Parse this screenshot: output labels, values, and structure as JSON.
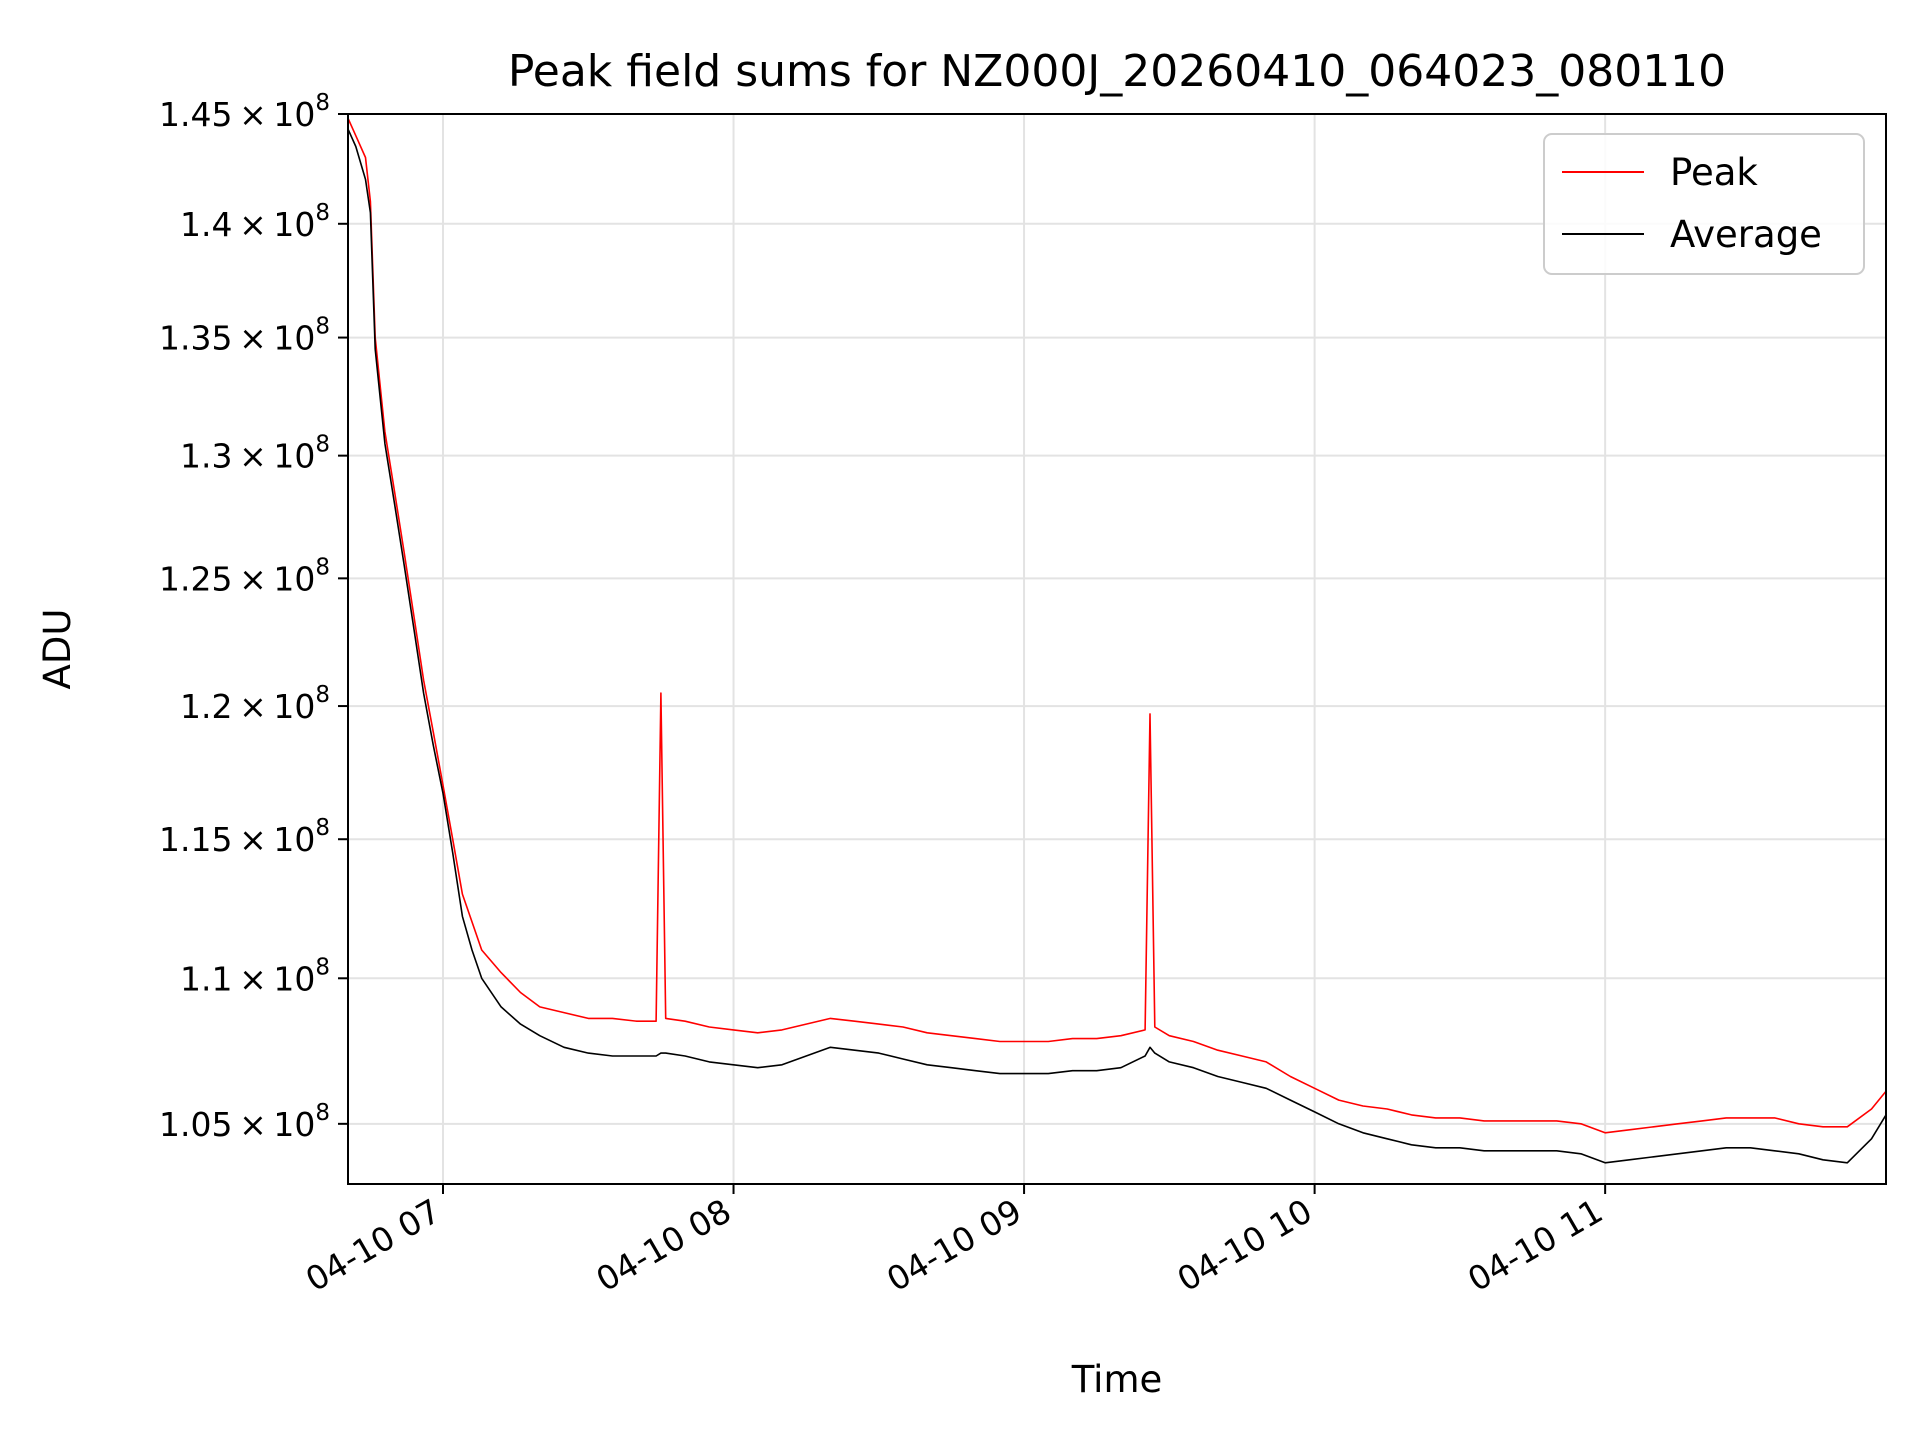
{
  "chart_data": {
    "type": "line",
    "title": "Peak field sums for NZ000J_20260410_064023_080110",
    "xlabel": "Time",
    "ylabel": "ADU",
    "scale": {
      "y": "log"
    },
    "xlim": [
      "2026-04-10 06:40:23",
      "2026-04-10 11:58:00"
    ],
    "ylim": [
      103000000,
      145000000
    ],
    "grid": true,
    "legend_position": "top-right",
    "x_ticks": [
      {
        "value": "2026-04-10 07:00",
        "label": "04-10 07"
      },
      {
        "value": "2026-04-10 08:00",
        "label": "04-10 08"
      },
      {
        "value": "2026-04-10 09:00",
        "label": "04-10 09"
      },
      {
        "value": "2026-04-10 10:00",
        "label": "04-10 10"
      },
      {
        "value": "2026-04-10 11:00",
        "label": "04-10 11"
      }
    ],
    "y_ticks": [
      {
        "value": 105000000,
        "mantissa": "1.05",
        "exponent": "8"
      },
      {
        "value": 110000000,
        "mantissa": "1.1",
        "exponent": "8"
      },
      {
        "value": 115000000,
        "mantissa": "1.15",
        "exponent": "8"
      },
      {
        "value": 120000000,
        "mantissa": "1.2",
        "exponent": "8"
      },
      {
        "value": 125000000,
        "mantissa": "1.25",
        "exponent": "8"
      },
      {
        "value": 130000000,
        "mantissa": "1.3",
        "exponent": "8"
      },
      {
        "value": 135000000,
        "mantissa": "1.35",
        "exponent": "8"
      },
      {
        "value": 140000000,
        "mantissa": "1.4",
        "exponent": "8"
      },
      {
        "value": 145000000,
        "mantissa": "1.45",
        "exponent": "8"
      }
    ],
    "series": [
      {
        "name": "Peak",
        "color": "#ff0000",
        "x": [
          "06:40",
          "06:42",
          "06:44",
          "06:45",
          "06:46",
          "06:47",
          "06:48",
          "06:50",
          "06:52",
          "06:54",
          "06:56",
          "06:58",
          "07:00",
          "07:02",
          "07:04",
          "07:06",
          "07:08",
          "07:12",
          "07:16",
          "07:20",
          "07:25",
          "07:30",
          "07:35",
          "07:40",
          "07:44",
          "07:45",
          "07:46",
          "07:50",
          "07:55",
          "08:00",
          "08:05",
          "08:10",
          "08:15",
          "08:20",
          "08:25",
          "08:30",
          "08:35",
          "08:40",
          "08:45",
          "08:50",
          "08:55",
          "09:00",
          "09:05",
          "09:10",
          "09:15",
          "09:20",
          "09:25",
          "09:26",
          "09:27",
          "09:30",
          "09:35",
          "09:40",
          "09:45",
          "09:50",
          "09:55",
          "10:00",
          "10:05",
          "10:10",
          "10:15",
          "10:20",
          "10:25",
          "10:30",
          "10:35",
          "10:40",
          "10:45",
          "10:50",
          "10:55",
          "11:00",
          "11:05",
          "11:10",
          "11:15",
          "11:20",
          "11:25",
          "11:30",
          "11:35",
          "11:40",
          "11:45",
          "11:50",
          "11:55",
          "11:58"
        ],
        "y": [
          145000000,
          144000000,
          143000000,
          141000000,
          135000000,
          133000000,
          131000000,
          128500000,
          126000000,
          123500000,
          121000000,
          119000000,
          117000000,
          115000000,
          113000000,
          112000000,
          111000000,
          110200000,
          109500000,
          109000000,
          108800000,
          108600000,
          108600000,
          108500000,
          108500000,
          120500000,
          108600000,
          108500000,
          108300000,
          108200000,
          108100000,
          108200000,
          108400000,
          108600000,
          108500000,
          108400000,
          108300000,
          108100000,
          108000000,
          107900000,
          107800000,
          107800000,
          107800000,
          107900000,
          107900000,
          108000000,
          108200000,
          119700000,
          108300000,
          108000000,
          107800000,
          107500000,
          107300000,
          107100000,
          106600000,
          106200000,
          105800000,
          105600000,
          105500000,
          105300000,
          105200000,
          105200000,
          105100000,
          105100000,
          105100000,
          105100000,
          105000000,
          104700000,
          104800000,
          104900000,
          105000000,
          105100000,
          105200000,
          105200000,
          105200000,
          105000000,
          104900000,
          104900000,
          105500000,
          106100000
        ]
      },
      {
        "name": "Average",
        "color": "#000000",
        "x": [
          "06:40",
          "06:42",
          "06:44",
          "06:45",
          "06:46",
          "06:47",
          "06:48",
          "06:50",
          "06:52",
          "06:54",
          "06:56",
          "06:58",
          "07:00",
          "07:02",
          "07:04",
          "07:06",
          "07:08",
          "07:12",
          "07:16",
          "07:20",
          "07:25",
          "07:30",
          "07:35",
          "07:40",
          "07:44",
          "07:45",
          "07:46",
          "07:50",
          "07:55",
          "08:00",
          "08:05",
          "08:10",
          "08:15",
          "08:20",
          "08:25",
          "08:30",
          "08:35",
          "08:40",
          "08:45",
          "08:50",
          "08:55",
          "09:00",
          "09:05",
          "09:10",
          "09:15",
          "09:20",
          "09:25",
          "09:26",
          "09:27",
          "09:30",
          "09:35",
          "09:40",
          "09:45",
          "09:50",
          "09:55",
          "10:00",
          "10:05",
          "10:10",
          "10:15",
          "10:20",
          "10:25",
          "10:30",
          "10:35",
          "10:40",
          "10:45",
          "10:50",
          "10:55",
          "11:00",
          "11:05",
          "11:10",
          "11:15",
          "11:20",
          "11:25",
          "11:30",
          "11:35",
          "11:40",
          "11:45",
          "11:50",
          "11:55",
          "11:58"
        ],
        "y": [
          144500000,
          143500000,
          142000000,
          140500000,
          134500000,
          132500000,
          130500000,
          128000000,
          125500000,
          123000000,
          120500000,
          118500000,
          116700000,
          114500000,
          112200000,
          111000000,
          110000000,
          109000000,
          108400000,
          108000000,
          107600000,
          107400000,
          107300000,
          107300000,
          107300000,
          107400000,
          107400000,
          107300000,
          107100000,
          107000000,
          106900000,
          107000000,
          107300000,
          107600000,
          107500000,
          107400000,
          107200000,
          107000000,
          106900000,
          106800000,
          106700000,
          106700000,
          106700000,
          106800000,
          106800000,
          106900000,
          107300000,
          107600000,
          107400000,
          107100000,
          106900000,
          106600000,
          106400000,
          106200000,
          105800000,
          105400000,
          105000000,
          104700000,
          104500000,
          104300000,
          104200000,
          104200000,
          104100000,
          104100000,
          104100000,
          104100000,
          104000000,
          103700000,
          103800000,
          103900000,
          104000000,
          104100000,
          104200000,
          104200000,
          104100000,
          104000000,
          103800000,
          103700000,
          104500000,
          105300000
        ]
      }
    ]
  }
}
